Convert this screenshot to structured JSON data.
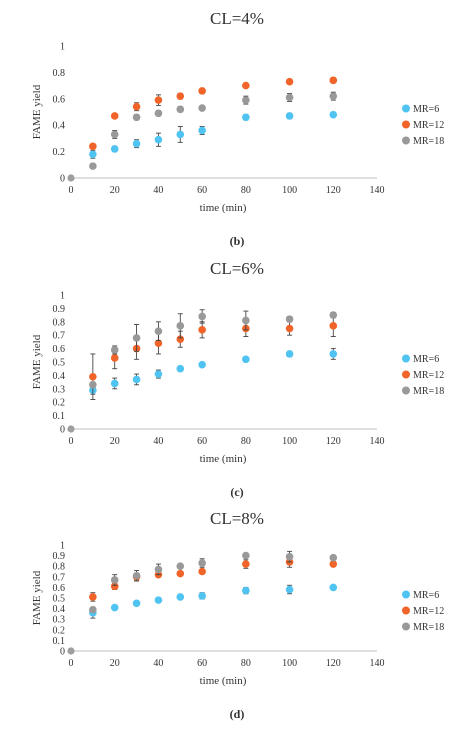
{
  "chart_data": [
    {
      "type": "scatter",
      "title": "CL=4%",
      "caption": "(b)",
      "xlabel": "time (min)",
      "ylabel": "FAME yield",
      "xlim": [
        0,
        140
      ],
      "ylim": [
        0,
        1
      ],
      "x_ticks": [
        0,
        20,
        40,
        60,
        80,
        100,
        120,
        140
      ],
      "y_ticks": [
        0,
        0.2,
        0.4,
        0.6,
        0.8,
        1
      ],
      "y_tick_labels": [
        "0",
        "0.2",
        "0.4",
        "0.6",
        "0.8",
        "1"
      ],
      "legend_position": "right",
      "grid": false,
      "origin_point": [
        0,
        0
      ],
      "series": [
        {
          "name": "MR=6",
          "color": "#4fc3f2",
          "points": [
            [
              10,
              0.18
            ],
            [
              20,
              0.22
            ],
            [
              30,
              0.26
            ],
            [
              40,
              0.29
            ],
            [
              50,
              0.33
            ],
            [
              60,
              0.36
            ],
            [
              80,
              0.46
            ],
            [
              100,
              0.47
            ],
            [
              120,
              0.48
            ]
          ],
          "errors": [
            0.03,
            0.02,
            0.03,
            0.05,
            0.06,
            0.03,
            0.02,
            0.02,
            0.01
          ]
        },
        {
          "name": "MR=12",
          "color": "#f0642a",
          "points": [
            [
              10,
              0.24
            ],
            [
              20,
              0.47
            ],
            [
              30,
              0.54
            ],
            [
              40,
              0.59
            ],
            [
              50,
              0.62
            ],
            [
              60,
              0.66
            ],
            [
              80,
              0.7
            ],
            [
              100,
              0.73
            ],
            [
              120,
              0.74
            ]
          ],
          "errors": [
            0.01,
            0.01,
            0.03,
            0.04,
            0.02,
            0.02,
            0.01,
            0.01,
            0.02
          ]
        },
        {
          "name": "MR=18",
          "color": "#999999",
          "points": [
            [
              10,
              0.09
            ],
            [
              20,
              0.33
            ],
            [
              30,
              0.46
            ],
            [
              40,
              0.49
            ],
            [
              50,
              0.52
            ],
            [
              60,
              0.53
            ],
            [
              80,
              0.59
            ],
            [
              100,
              0.61
            ],
            [
              120,
              0.62
            ]
          ],
          "errors": [
            0.01,
            0.03,
            0.02,
            0.02,
            0.02,
            0.01,
            0.03,
            0.03,
            0.03
          ]
        }
      ]
    },
    {
      "type": "scatter",
      "title": "CL=6%",
      "caption": "(c)",
      "xlabel": "time (min)",
      "ylabel": "FAME yield",
      "xlim": [
        0,
        140
      ],
      "ylim": [
        0,
        1
      ],
      "x_ticks": [
        0,
        20,
        40,
        60,
        80,
        100,
        120,
        140
      ],
      "y_ticks": [
        0,
        0.1,
        0.2,
        0.3,
        0.4,
        0.5,
        0.6,
        0.7,
        0.8,
        0.9,
        1
      ],
      "y_tick_labels": [
        "0",
        "0.1",
        "0.2",
        "0.3",
        "0.4",
        "0.5",
        "0.6",
        "0.7",
        "0.8",
        "0.9",
        "1"
      ],
      "legend_position": "right",
      "grid": false,
      "origin_point": [
        0,
        0
      ],
      "series": [
        {
          "name": "MR=6",
          "color": "#4fc3f2",
          "points": [
            [
              10,
              0.29
            ],
            [
              20,
              0.34
            ],
            [
              30,
              0.37
            ],
            [
              40,
              0.41
            ],
            [
              50,
              0.45
            ],
            [
              60,
              0.48
            ],
            [
              80,
              0.52
            ],
            [
              100,
              0.56
            ],
            [
              120,
              0.56
            ]
          ],
          "errors": [
            0.03,
            0.04,
            0.04,
            0.03,
            0.01,
            0.01,
            0.01,
            0.02,
            0.04
          ]
        },
        {
          "name": "MR=12",
          "color": "#f0642a",
          "points": [
            [
              10,
              0.39
            ],
            [
              20,
              0.53
            ],
            [
              30,
              0.6
            ],
            [
              40,
              0.64
            ],
            [
              50,
              0.67
            ],
            [
              60,
              0.74
            ],
            [
              80,
              0.75
            ],
            [
              100,
              0.75
            ],
            [
              120,
              0.77
            ]
          ],
          "errors": [
            0.17,
            0.08,
            0.08,
            0.08,
            0.06,
            0.06,
            0.06,
            0.05,
            0.08
          ]
        },
        {
          "name": "MR=18",
          "color": "#999999",
          "points": [
            [
              10,
              0.33
            ],
            [
              20,
              0.59
            ],
            [
              30,
              0.68
            ],
            [
              40,
              0.73
            ],
            [
              50,
              0.77
            ],
            [
              60,
              0.84
            ],
            [
              80,
              0.81
            ],
            [
              100,
              0.82
            ],
            [
              120,
              0.85
            ]
          ],
          "errors": [
            0.02,
            0.03,
            0.1,
            0.07,
            0.09,
            0.05,
            0.07,
            0.02,
            0.02
          ]
        }
      ]
    },
    {
      "type": "scatter",
      "title": "CL=8%",
      "caption": "(d)",
      "xlabel": "time (min)",
      "ylabel": "FAME yield",
      "xlim": [
        0,
        140
      ],
      "ylim": [
        0,
        1
      ],
      "x_ticks": [
        0,
        20,
        40,
        60,
        80,
        100,
        120,
        140
      ],
      "y_ticks": [
        0,
        0.1,
        0.2,
        0.3,
        0.4,
        0.5,
        0.6,
        0.7,
        0.8,
        0.9,
        1
      ],
      "y_tick_labels": [
        "0",
        "0.1",
        "0.2",
        "0.3",
        "0.4",
        "0.5",
        "0.6",
        "0.7",
        "0.8",
        "0.9",
        "1"
      ],
      "legend_position": "right",
      "grid": false,
      "origin_point": [
        0,
        0
      ],
      "series": [
        {
          "name": "MR=6",
          "color": "#4fc3f2",
          "points": [
            [
              10,
              0.36
            ],
            [
              20,
              0.41
            ],
            [
              30,
              0.45
            ],
            [
              40,
              0.48
            ],
            [
              50,
              0.51
            ],
            [
              60,
              0.52
            ],
            [
              80,
              0.57
            ],
            [
              100,
              0.58
            ],
            [
              120,
              0.6
            ]
          ],
          "errors": [
            0.05,
            0.01,
            0.01,
            0.01,
            0.01,
            0.03,
            0.03,
            0.04,
            0.01
          ]
        },
        {
          "name": "MR=12",
          "color": "#f0642a",
          "points": [
            [
              10,
              0.51
            ],
            [
              20,
              0.61
            ],
            [
              30,
              0.7
            ],
            [
              40,
              0.72
            ],
            [
              50,
              0.73
            ],
            [
              60,
              0.75
            ],
            [
              80,
              0.82
            ],
            [
              100,
              0.84
            ],
            [
              120,
              0.82
            ]
          ],
          "errors": [
            0.04,
            0.03,
            0.03,
            0.02,
            0.01,
            0.01,
            0.04,
            0.05,
            0.02
          ]
        },
        {
          "name": "MR=18",
          "color": "#999999",
          "points": [
            [
              10,
              0.39
            ],
            [
              20,
              0.67
            ],
            [
              30,
              0.71
            ],
            [
              40,
              0.77
            ],
            [
              50,
              0.8
            ],
            [
              60,
              0.83
            ],
            [
              80,
              0.9
            ],
            [
              100,
              0.89
            ],
            [
              120,
              0.88
            ]
          ],
          "errors": [
            0.02,
            0.05,
            0.05,
            0.05,
            0.02,
            0.04,
            0.02,
            0.05,
            0.02
          ]
        }
      ]
    }
  ]
}
